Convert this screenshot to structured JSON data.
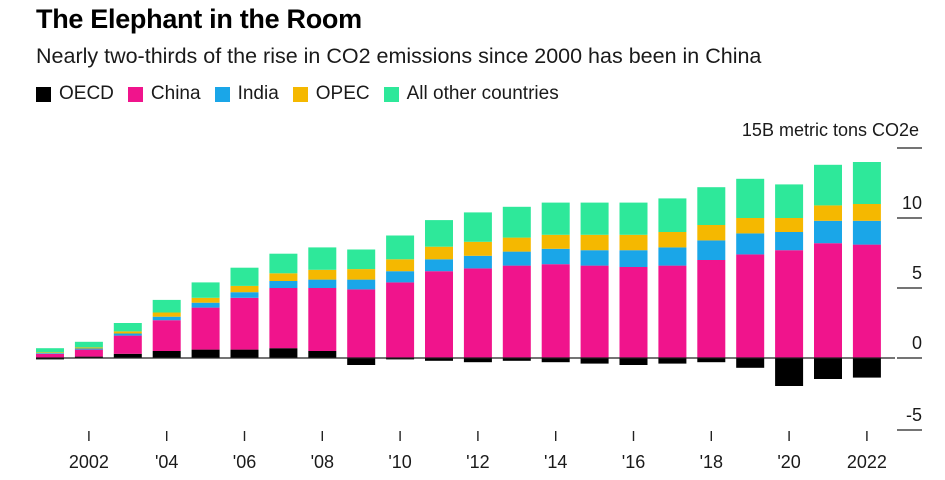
{
  "header": {
    "title": "The Elephant in the Room",
    "subtitle": "Nearly two-thirds of the rise in CO2 emissions since 2000 has been in China"
  },
  "legend": [
    {
      "label": "OECD",
      "color": "#000000"
    },
    {
      "label": "China",
      "color": "#f0148c"
    },
    {
      "label": "India",
      "color": "#1aa6e8"
    },
    {
      "label": "OPEC",
      "color": "#f5b800"
    },
    {
      "label": "All other countries",
      "color": "#2ee89a"
    }
  ],
  "chart_data": {
    "type": "bar",
    "stacked": true,
    "unit_label": "15B metric tons CO2e",
    "ylim": [
      -5,
      15
    ],
    "yticks": [
      -5,
      0,
      5,
      10,
      15
    ],
    "ytick_labels": [
      "-5",
      "0",
      "5",
      "10",
      ""
    ],
    "grid": false,
    "legend_position": "top-left",
    "categories": [
      "2001",
      "2002",
      "2003",
      "2004",
      "2005",
      "2006",
      "2007",
      "2008",
      "2009",
      "2010",
      "2011",
      "2012",
      "2013",
      "2014",
      "2015",
      "2016",
      "2017",
      "2018",
      "2019",
      "2020",
      "2021",
      "2022"
    ],
    "xtick_labels": [
      "",
      "2002",
      "",
      "'04",
      "",
      "'06",
      "",
      "'08",
      "",
      "'10",
      "",
      "'12",
      "",
      "'14",
      "",
      "'16",
      "",
      "'18",
      "",
      "'20",
      "",
      "2022"
    ],
    "series": [
      {
        "name": "OECD",
        "color": "#000000",
        "values": [
          -0.1,
          0.1,
          0.3,
          0.5,
          0.6,
          0.6,
          0.7,
          0.5,
          -0.5,
          -0.1,
          -0.2,
          -0.3,
          -0.2,
          -0.3,
          -0.4,
          -0.5,
          -0.4,
          -0.3,
          -0.7,
          -2.0,
          -1.5,
          -1.4
        ]
      },
      {
        "name": "China",
        "color": "#f0148c",
        "values": [
          0.3,
          0.5,
          1.3,
          2.2,
          3.0,
          3.7,
          4.3,
          4.5,
          4.9,
          5.4,
          6.2,
          6.4,
          6.6,
          6.7,
          6.6,
          6.5,
          6.6,
          7.0,
          7.4,
          7.7,
          8.2,
          8.1
        ]
      },
      {
        "name": "India",
        "color": "#1aa6e8",
        "values": [
          0.05,
          0.08,
          0.15,
          0.25,
          0.35,
          0.4,
          0.5,
          0.6,
          0.7,
          0.8,
          0.85,
          0.9,
          1.0,
          1.1,
          1.1,
          1.2,
          1.3,
          1.4,
          1.5,
          1.3,
          1.6,
          1.7
        ]
      },
      {
        "name": "OPEC",
        "color": "#f5b800",
        "values": [
          0.05,
          0.08,
          0.15,
          0.3,
          0.35,
          0.45,
          0.55,
          0.7,
          0.75,
          0.85,
          0.9,
          1.0,
          1.0,
          1.0,
          1.1,
          1.1,
          1.1,
          1.1,
          1.1,
          1.0,
          1.1,
          1.2
        ]
      },
      {
        "name": "All other countries",
        "color": "#2ee89a",
        "values": [
          0.3,
          0.4,
          0.6,
          0.9,
          1.1,
          1.3,
          1.4,
          1.6,
          1.4,
          1.7,
          1.9,
          2.1,
          2.2,
          2.3,
          2.3,
          2.3,
          2.4,
          2.7,
          2.8,
          2.4,
          2.9,
          3.0
        ]
      }
    ]
  }
}
